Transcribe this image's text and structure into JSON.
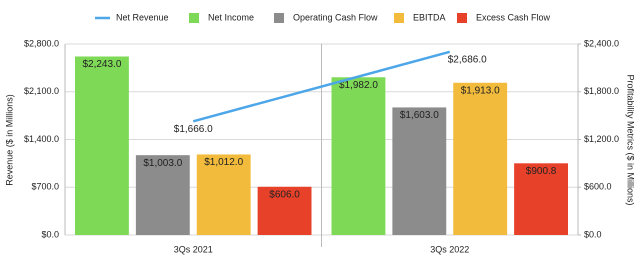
{
  "chart_data": {
    "type": "bar",
    "y_label": "Revenue ($ in Millions)",
    "y2_label": "Profitability Metrics ($ in Millions)",
    "categories": [
      "3Qs 2021",
      "3Qs 2022"
    ],
    "series": [
      {
        "name": "Net Revenue",
        "type": "line",
        "color": "#4da6e8",
        "values": [
          1666,
          2686
        ],
        "value_labels": [
          "$1,666.0",
          "$2,686.0"
        ]
      },
      {
        "name": "Net Income",
        "color": "#7ed957",
        "axis": "y2",
        "values": [
          2243,
          1982
        ],
        "value_labels": [
          "$2,243.0",
          "$1,982.0"
        ]
      },
      {
        "name": "Operating Cash Flow",
        "color": "#8c8c8c",
        "axis": "y2",
        "values": [
          1003,
          1603
        ],
        "value_labels": [
          "$1,003.0",
          "$1,603.0"
        ]
      },
      {
        "name": "EBITDA",
        "color": "#f3bb3c",
        "axis": "y2",
        "values": [
          1012,
          1913
        ],
        "value_labels": [
          "$1,012.0",
          "$1,913.0"
        ]
      },
      {
        "name": "Excess Cash Flow",
        "color": "#e8412a",
        "axis": "y2",
        "values": [
          606,
          900.8
        ],
        "value_labels": [
          "$606.0",
          "$900.8"
        ]
      }
    ],
    "ylim": [
      0,
      2800
    ],
    "yticks": [
      {
        "value": 0,
        "label": "$0.0"
      },
      {
        "value": 700,
        "label": "$700.0"
      },
      {
        "value": 1400,
        "label": "$1,400.0"
      },
      {
        "value": 2100,
        "label": "$2,100.0"
      },
      {
        "value": 2800,
        "label": "$2,800.0"
      }
    ],
    "y2lim": [
      0,
      2400
    ],
    "y2ticks": [
      {
        "value": 0,
        "label": "$0.0"
      },
      {
        "value": 600,
        "label": "$600.0"
      },
      {
        "value": 1200,
        "label": "$1,200.0"
      },
      {
        "value": 1800,
        "label": "$1,800.0"
      },
      {
        "value": 2400,
        "label": "$2,400.0"
      }
    ],
    "grid": true,
    "legend": "top"
  }
}
